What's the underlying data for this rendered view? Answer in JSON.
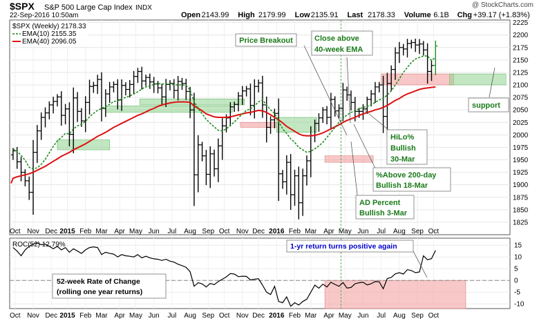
{
  "header": {
    "symbol": "$SPX",
    "name": "S&P 500 Large Cap Index",
    "exchange": "INDX",
    "watermark": "@ StockCharts.com",
    "date": "22-Sep-2016 10:50am",
    "quote": [
      {
        "label": "Open",
        "value": "2143.99"
      },
      {
        "label": "High",
        "value": "2179.99"
      },
      {
        "label": "Low",
        "value": "2135.91"
      },
      {
        "label": "Last",
        "value": "2178.33"
      },
      {
        "label": "Volume",
        "value": "6.1B"
      },
      {
        "label": "Chg",
        "value": "+39.17 (+1.83%)"
      }
    ]
  },
  "legend": {
    "main": "$SPX (Weekly) 2178.33",
    "ema10": "EMA(10) 2155.35",
    "ema40": "EMA(40) 2096.05",
    "roc": "ROC(52) 12.79%"
  },
  "colors": {
    "ema10": "#1e8c1e",
    "ema40": "#dd1111",
    "green_zone": "#8fd48f",
    "red_zone": "#f29a9a",
    "annotation_text": "#1a7a1a",
    "roc_note_text": "#0000cc"
  },
  "annotations": {
    "price_breakout": "Price Breakout",
    "close_above_1": "Close above",
    "close_above_2": "40-week EMA",
    "hilo_1": "HiLo%",
    "hilo_2": "Bullish",
    "hilo_3": "30-Mar",
    "above200_1": "%Above 200-day",
    "above200_2": "Bullish 18-Mar",
    "ad_1": "AD Percent",
    "ad_2": "Bullish 3-Mar",
    "support": "support",
    "roc_positive": "1-yr return turns positive again",
    "roc_desc_1": "52-week Rate of Change",
    "roc_desc_2": "(rolling one year returns)"
  },
  "chart_data": [
    {
      "type": "ohlc",
      "title": "$SPX (Weekly)",
      "ylim": [
        1800,
        2230
      ],
      "y_ticks": [
        1825,
        1850,
        1875,
        1900,
        1925,
        1950,
        1975,
        2000,
        2025,
        2050,
        2075,
        2100,
        2125,
        2150,
        2175,
        2200,
        2225
      ],
      "x_ticks": [
        {
          "label": "Oct",
          "week": 1
        },
        {
          "label": "Nov",
          "week": 5.5
        },
        {
          "label": "Dec",
          "week": 10
        },
        {
          "label": "2015",
          "week": 14
        },
        {
          "label": "Feb",
          "week": 18.5
        },
        {
          "label": "Mar",
          "week": 22.5
        },
        {
          "label": "Apr",
          "week": 27
        },
        {
          "label": "May",
          "week": 31
        },
        {
          "label": "Jun",
          "week": 35.5
        },
        {
          "label": "Jul",
          "week": 40
        },
        {
          "label": "Aug",
          "week": 44.5
        },
        {
          "label": "Sep",
          "week": 49
        },
        {
          "label": "Oct",
          "week": 53
        },
        {
          "label": "Nov",
          "week": 57.5
        },
        {
          "label": "Dec",
          "week": 61.5
        },
        {
          "label": "2016",
          "week": 66
        },
        {
          "label": "Feb",
          "week": 70.5
        },
        {
          "label": "Mar",
          "week": 74.5
        },
        {
          "label": "Apr",
          "week": 79
        },
        {
          "label": "May",
          "week": 83
        },
        {
          "label": "Jun",
          "week": 87.5
        },
        {
          "label": "Jul",
          "week": 92
        },
        {
          "label": "Aug",
          "week": 96.5
        },
        {
          "label": "Sep",
          "week": 101
        },
        {
          "label": "Oct",
          "week": 105
        }
      ],
      "closes": [
        1968,
        1946,
        1925,
        1908,
        1885,
        1965,
        2008,
        2035,
        2044,
        2060,
        2067,
        2076,
        2039,
        2052,
        2001,
        2074,
        2047,
        2028,
        2065,
        2097,
        2099,
        2111,
        2053,
        2082,
        2096,
        2101,
        2070,
        2099,
        2091,
        2101,
        2117,
        2127,
        2108,
        2115,
        2106,
        2102,
        2094,
        2076,
        2101,
        2103,
        2089,
        2107,
        2103,
        2087,
        2050,
        1920,
        1980,
        1958,
        1921,
        1962,
        1932,
        1978,
        2018,
        2034,
        2056,
        2061,
        2078,
        2088,
        2092,
        2059,
        2097,
        2104,
        2060,
        2015,
        2030,
        2043,
        1922,
        1906,
        1945,
        1880,
        1918,
        1864,
        1918,
        1948,
        1999,
        2023,
        2034,
        2050,
        2035,
        2071,
        2048,
        2053,
        2090,
        2080,
        2065,
        2047,
        2047,
        2052,
        2071,
        2082,
        2096,
        2100,
        2037,
        2103,
        2131,
        2164,
        2175,
        2172,
        2183,
        2185,
        2180,
        2182,
        2170,
        2127,
        2139,
        2178
      ],
      "ema10": [
        1972,
        1967,
        1959,
        1949,
        1935,
        1932,
        1934,
        1941,
        1951,
        1964,
        1977,
        1988,
        1995,
        2003,
        2002,
        2012,
        2018,
        2021,
        2027,
        2036,
        2043,
        2049,
        2053,
        2057,
        2061,
        2067,
        2068,
        2072,
        2075,
        2078,
        2082,
        2086,
        2092,
        2096,
        2098,
        2101,
        2103,
        2102,
        2102,
        2102,
        2100,
        2100,
        2100,
        2099,
        2090,
        2066,
        2053,
        2042,
        2031,
        2023,
        2016,
        2009,
        2008,
        2012,
        2019,
        2026,
        2034,
        2042,
        2049,
        2052,
        2058,
        2066,
        2070,
        2060,
        2050,
        2043,
        2027,
        2012,
        2003,
        1992,
        1985,
        1975,
        1970,
        1965,
        1967,
        1972,
        1978,
        1985,
        1995,
        2005,
        2015,
        2025,
        2033,
        2040,
        2045,
        2048,
        2052,
        2055,
        2057,
        2060,
        2065,
        2070,
        2073,
        2080,
        2088,
        2100,
        2112,
        2125,
        2135,
        2145,
        2152,
        2155,
        2158,
        2158,
        2149,
        2155
      ],
      "ema40": [
        1913,
        1916,
        1918,
        1920,
        1922,
        1925,
        1929,
        1933,
        1937,
        1942,
        1947,
        1952,
        1957,
        1961,
        1965,
        1970,
        1974,
        1978,
        1982,
        1987,
        1992,
        1997,
        2001,
        2005,
        2010,
        2015,
        2019,
        2023,
        2027,
        2031,
        2035,
        2039,
        2042,
        2046,
        2050,
        2053,
        2057,
        2060,
        2062,
        2064,
        2065,
        2066,
        2066,
        2066,
        2065,
        2058,
        2053,
        2048,
        2042,
        2039,
        2036,
        2035,
        2035,
        2035,
        2036,
        2038,
        2040,
        2042,
        2044,
        2045,
        2047,
        2049,
        2048,
        2045,
        2040,
        2035,
        2030,
        2024,
        2017,
        2012,
        2007,
        2002,
        1999,
        1998,
        1998,
        1999,
        2001,
        2004,
        2008,
        2012,
        2016,
        2020,
        2025,
        2029,
        2032,
        2035,
        2039,
        2042,
        2045,
        2047,
        2050,
        2052,
        2055,
        2059,
        2064,
        2069,
        2073,
        2078,
        2082,
        2085,
        2088,
        2091,
        2093,
        2094,
        2095,
        2096
      ],
      "zones": [
        {
          "color": "green",
          "x1": 11.5,
          "x2": 24.5,
          "y1": 1970,
          "y2": 1990
        },
        {
          "color": "green",
          "x1": 23.5,
          "x2": 55,
          "y1": 2045,
          "y2": 2058
        },
        {
          "color": "green",
          "x1": 32,
          "x2": 58,
          "y1": 2060,
          "y2": 2072
        },
        {
          "color": "red",
          "x1": 57,
          "x2": 66,
          "y1": 2015,
          "y2": 2025
        },
        {
          "color": "green",
          "x1": 66,
          "x2": 76,
          "y1": 2005,
          "y2": 2035
        },
        {
          "color": "red",
          "x1": 78,
          "x2": 90,
          "y1": 1945,
          "y2": 1958
        },
        {
          "color": "red",
          "x1": 92,
          "x2": 110,
          "y1": 2100,
          "y2": 2122
        },
        {
          "color": "green",
          "x1": 109,
          "x2": 123,
          "y1": 2100,
          "y2": 2122
        }
      ],
      "vline_week": 82
    },
    {
      "type": "line",
      "title": "ROC(52)",
      "ylim": [
        -12,
        18
      ],
      "y_ticks": [
        -10,
        -5,
        0,
        5,
        10,
        15
      ],
      "values": [
        14,
        12.5,
        10.5,
        13,
        14.5,
        15.5,
        16,
        15.2,
        15.5,
        14.5,
        13.5,
        14.5,
        13,
        14,
        12,
        13.5,
        12.5,
        11.5,
        13,
        14,
        14.3,
        14,
        11,
        12,
        11.5,
        11.2,
        10,
        11,
        10.5,
        10.3,
        10,
        11,
        9.6,
        10.3,
        9.6,
        9.2,
        9,
        8.5,
        9,
        8.2,
        7.8,
        6.9,
        6.3,
        5.6,
        3.7,
        -2.5,
        -1,
        -1.5,
        -2.8,
        -1.3,
        -1.8,
        -0.5,
        0.5,
        1.5,
        2.9,
        2.7,
        1.6,
        1.8,
        1.7,
        0.2,
        0.5,
        0.7,
        -2,
        -5,
        -6,
        -2.5,
        -9,
        -9.5,
        -7,
        -11,
        -9.5,
        -10.5,
        -9,
        -8,
        -5,
        -2,
        -3.3,
        -1.6,
        -2.8,
        -0.8,
        -1.7,
        -2.5,
        -0.9,
        -3.3,
        -3,
        -1.4,
        -1,
        -0.8,
        -1.9,
        -1.4,
        -0.5,
        -0.6,
        -3.6,
        0.8,
        1.3,
        2.8,
        3.3,
        2.7,
        4.6,
        4.2,
        3.3,
        3.6,
        10.5,
        8.8,
        9.3,
        12.79
      ],
      "zones": [
        {
          "color": "red",
          "x1": 78,
          "x2": 113,
          "y1": -12.5,
          "y2": 0
        }
      ]
    }
  ]
}
